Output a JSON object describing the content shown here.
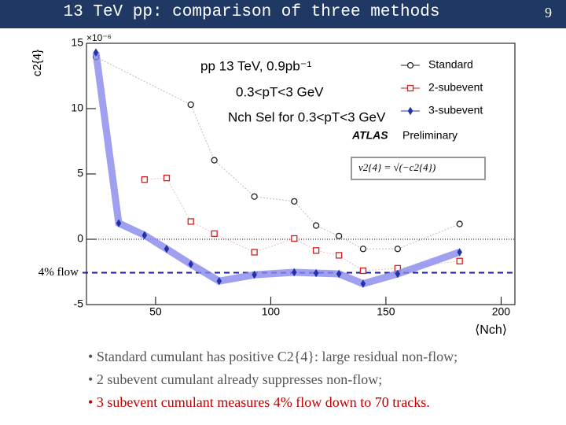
{
  "slide": {
    "title": "13 TeV pp: comparison of three methods",
    "page": "9",
    "bullets": [
      "Standard cumulant has positive C2{4}: large residual non-flow;",
      "2 subevent cumulant already suppresses non-flow;",
      "3 subevent cumulant measures 4% flow down to 70 tracks."
    ]
  },
  "chart_data": {
    "type": "scatter",
    "y_label": "c2{4}",
    "y_multiplier": "×10⁻⁶",
    "x_label": "⟨Nch⟩",
    "annotations": [
      "pp 13 TeV, 0.9pb⁻¹",
      "0.3<pT<3 GeV",
      "Nch Sel for 0.3<pT<3 GeV",
      "ATLAS",
      "Preliminary",
      "v2{4} = √(−c2{4})"
    ],
    "xlim": [
      20,
      206
    ],
    "xticks": [
      50,
      100,
      150,
      200
    ],
    "ylim": [
      -5,
      15
    ],
    "yticks": [
      -5,
      0,
      5,
      10,
      15
    ],
    "legend": "top-right",
    "reference_lines": [
      {
        "value": -2.56,
        "label": "4% flow"
      }
    ],
    "series": [
      {
        "name": "Standard",
        "color": "#222222",
        "marker": "circle",
        "x": [
          24.1,
          65.3,
          75.5,
          92.9,
          110.2,
          119.7,
          129.6,
          140.1,
          155.1,
          182
        ],
        "values": [
          13.95,
          10.3,
          6.05,
          3.27,
          2.9,
          1.05,
          0.25,
          -0.74,
          -0.74,
          1.17
        ]
      },
      {
        "name": "2-subevent",
        "color": "#cc2222",
        "marker": "square",
        "x": [
          45.2,
          54.8,
          65.3,
          75.5,
          92.9,
          110.2,
          119.7,
          129.6,
          140.1,
          155.1,
          182
        ],
        "values": [
          4.57,
          4.69,
          1.36,
          0.43,
          -0.99,
          0.06,
          -0.86,
          -1.23,
          -2.41,
          -2.22,
          -1.67
        ]
      },
      {
        "name": "3-subevent",
        "color": "#2233aa",
        "marker": "diamond",
        "x": [
          24.1,
          34,
          45.2,
          54.8,
          65.3,
          77.6,
          92.9,
          110.2,
          119.7,
          129.6,
          140.1,
          155.1,
          182
        ],
        "values": [
          14.3,
          1.23,
          0.31,
          -0.74,
          -1.91,
          -3.2,
          -2.72,
          -2.53,
          -2.59,
          -2.65,
          -3.4,
          -2.65,
          -0.99
        ]
      }
    ]
  }
}
